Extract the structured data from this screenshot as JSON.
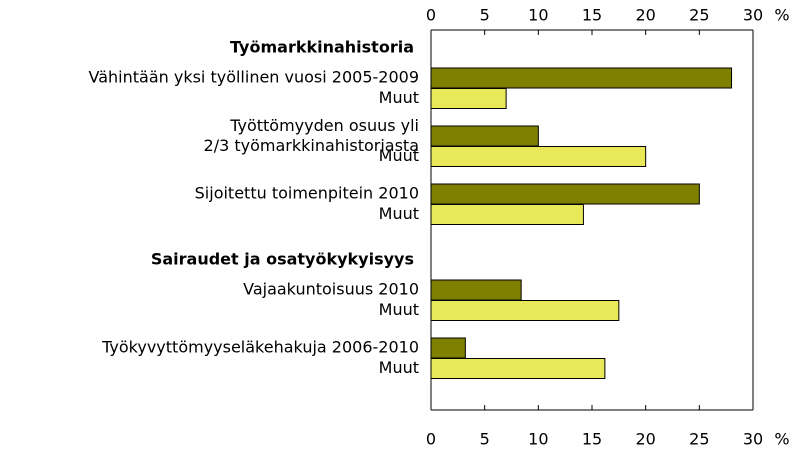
{
  "chart_data": {
    "type": "bar",
    "orientation": "horizontal",
    "unit": "%",
    "xlim": [
      0,
      30
    ],
    "xticks": [
      0,
      5,
      10,
      15,
      20,
      25,
      30
    ],
    "colors": [
      "#808000",
      "#e8e858"
    ],
    "groups": [
      {
        "name": "Työmarkkinahistoria",
        "categories": [
          "Vähintään yksi työllinen vuosi 2005-2009",
          "Muut",
          "Työttömyyden osuus yli\n2/3 työmarkkinahistoriasta",
          "Muut",
          "Sijoitettu toimenpitein 2010",
          "Muut"
        ],
        "values": [
          28,
          7,
          10,
          20,
          25,
          14.2
        ]
      },
      {
        "name": "Sairaudet ja osatyökykyisyys",
        "categories": [
          "Vajaakuntoisuus 2010",
          "Muut",
          "Työkyvyttömyyseläkehakuja 2006-2010",
          "Muut"
        ],
        "values": [
          8.4,
          17.5,
          3.2,
          16.2
        ]
      }
    ]
  }
}
